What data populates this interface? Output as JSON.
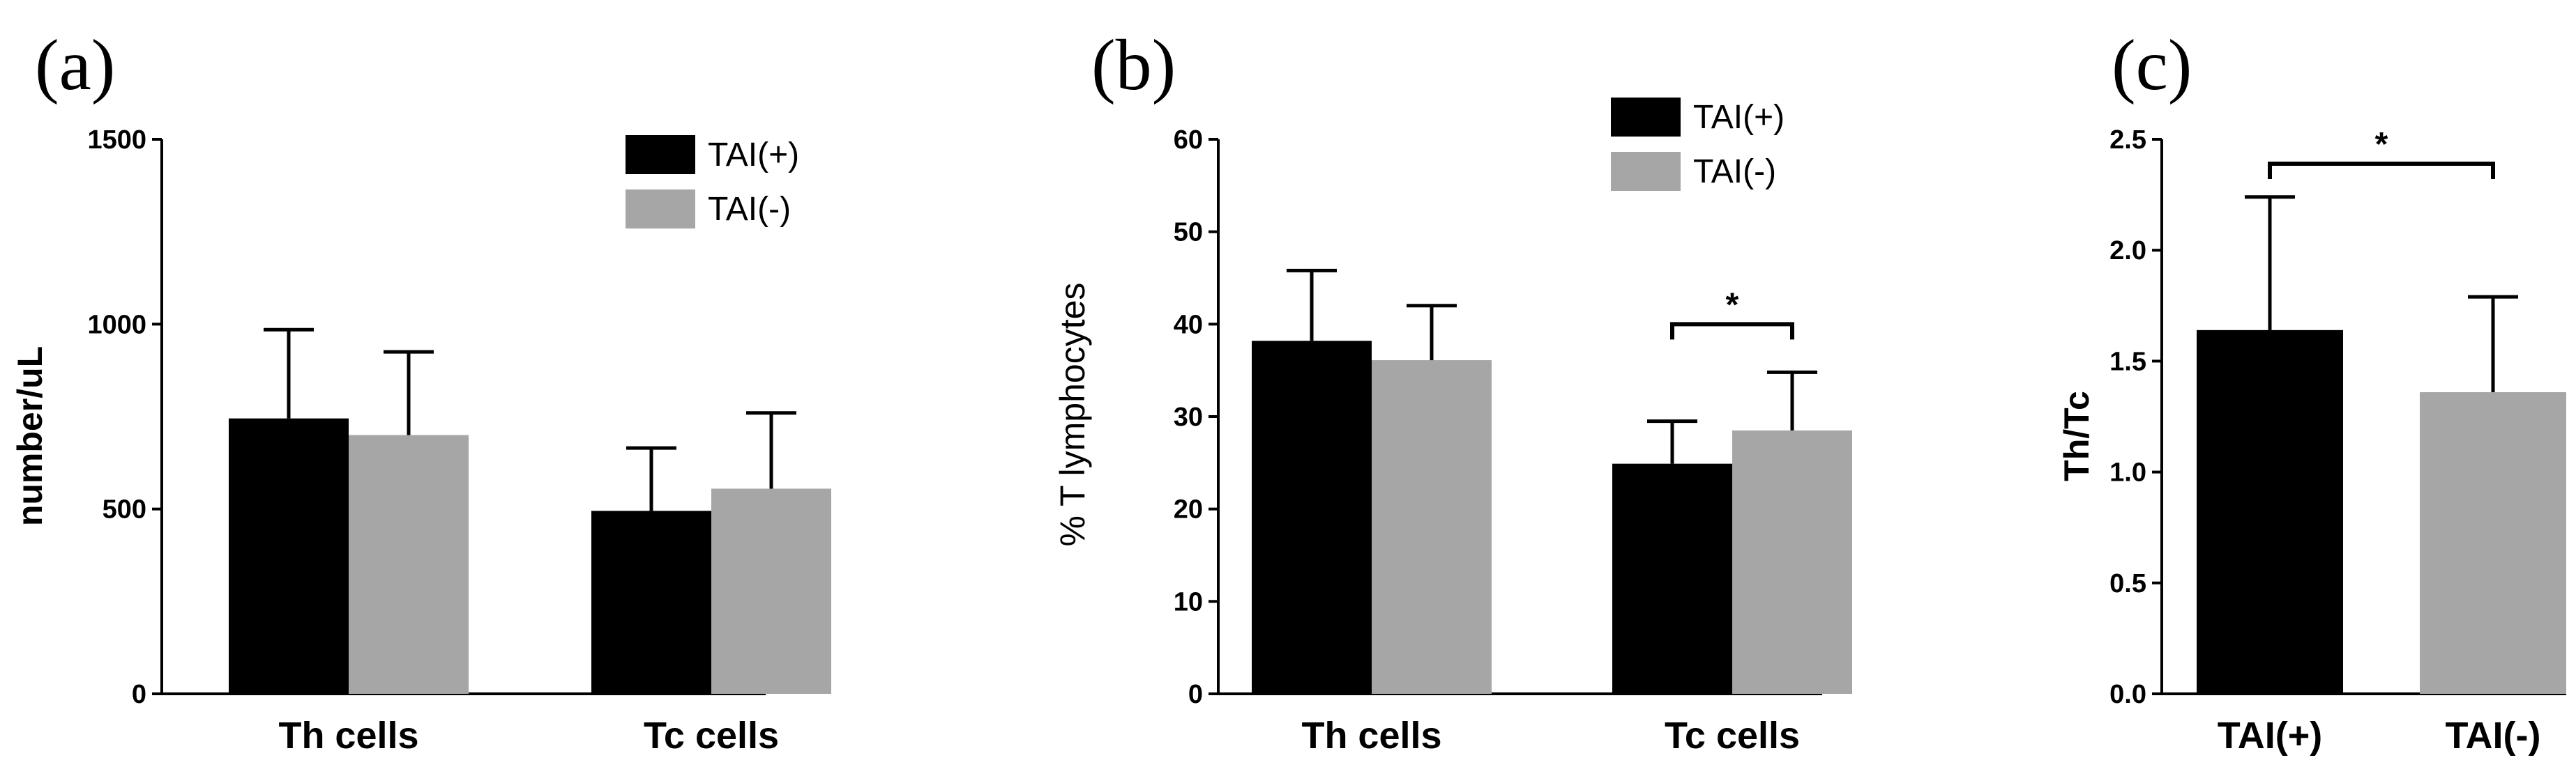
{
  "colors": {
    "tai_pos": "#000000",
    "tai_neg": "#a6a6a6"
  },
  "chart_data": [
    {
      "panel": "(a)",
      "type": "bar",
      "ylabel": "number/uL",
      "ylim": [
        0,
        1500
      ],
      "yticks": [
        0,
        500,
        1000,
        1500
      ],
      "categories": [
        "Th cells",
        "Tc cells"
      ],
      "series": [
        {
          "name": "TAI(+)",
          "color": "#000000",
          "values": [
            745,
            495
          ],
          "errors": [
            240,
            170
          ]
        },
        {
          "name": "TAI(-)",
          "color": "#a6a6a6",
          "values": [
            700,
            555
          ],
          "errors": [
            225,
            205
          ]
        }
      ],
      "legend": {
        "position": "top-right",
        "entries": [
          "TAI(+)",
          "TAI(-)"
        ]
      },
      "significance": []
    },
    {
      "panel": "(b)",
      "type": "bar",
      "ylabel": "% T lymphocytes",
      "ylim": [
        0,
        60
      ],
      "yticks": [
        0,
        10,
        20,
        30,
        40,
        50,
        60
      ],
      "categories": [
        "Th cells",
        "Tc cells"
      ],
      "series": [
        {
          "name": "TAI(+)",
          "color": "#000000",
          "values": [
            38.2,
            24.9
          ],
          "errors": [
            7.6,
            4.6
          ]
        },
        {
          "name": "TAI(-)",
          "color": "#a6a6a6",
          "values": [
            36.1,
            28.5
          ],
          "errors": [
            5.9,
            6.3
          ]
        }
      ],
      "legend": {
        "position": "top-right",
        "entries": [
          "TAI(+)",
          "TAI(-)"
        ]
      },
      "significance": [
        {
          "category": 1,
          "y": 40,
          "label": "*"
        }
      ]
    },
    {
      "panel": "(c)",
      "type": "bar",
      "ylabel": "Th/Tc",
      "ylim": [
        0,
        2.5
      ],
      "yticks": [
        "0.0",
        "0.5",
        "1.0",
        "1.5",
        "2.0",
        "2.5"
      ],
      "categories": [
        "TAI(+)",
        "TAI(-)"
      ],
      "values": [
        1.64,
        1.36
      ],
      "errors": [
        0.6,
        0.43
      ],
      "colors": [
        "#000000",
        "#a6a6a6"
      ],
      "significance": [
        {
          "from": 0,
          "to": 1,
          "y": 2.39,
          "label": "*"
        }
      ]
    }
  ]
}
